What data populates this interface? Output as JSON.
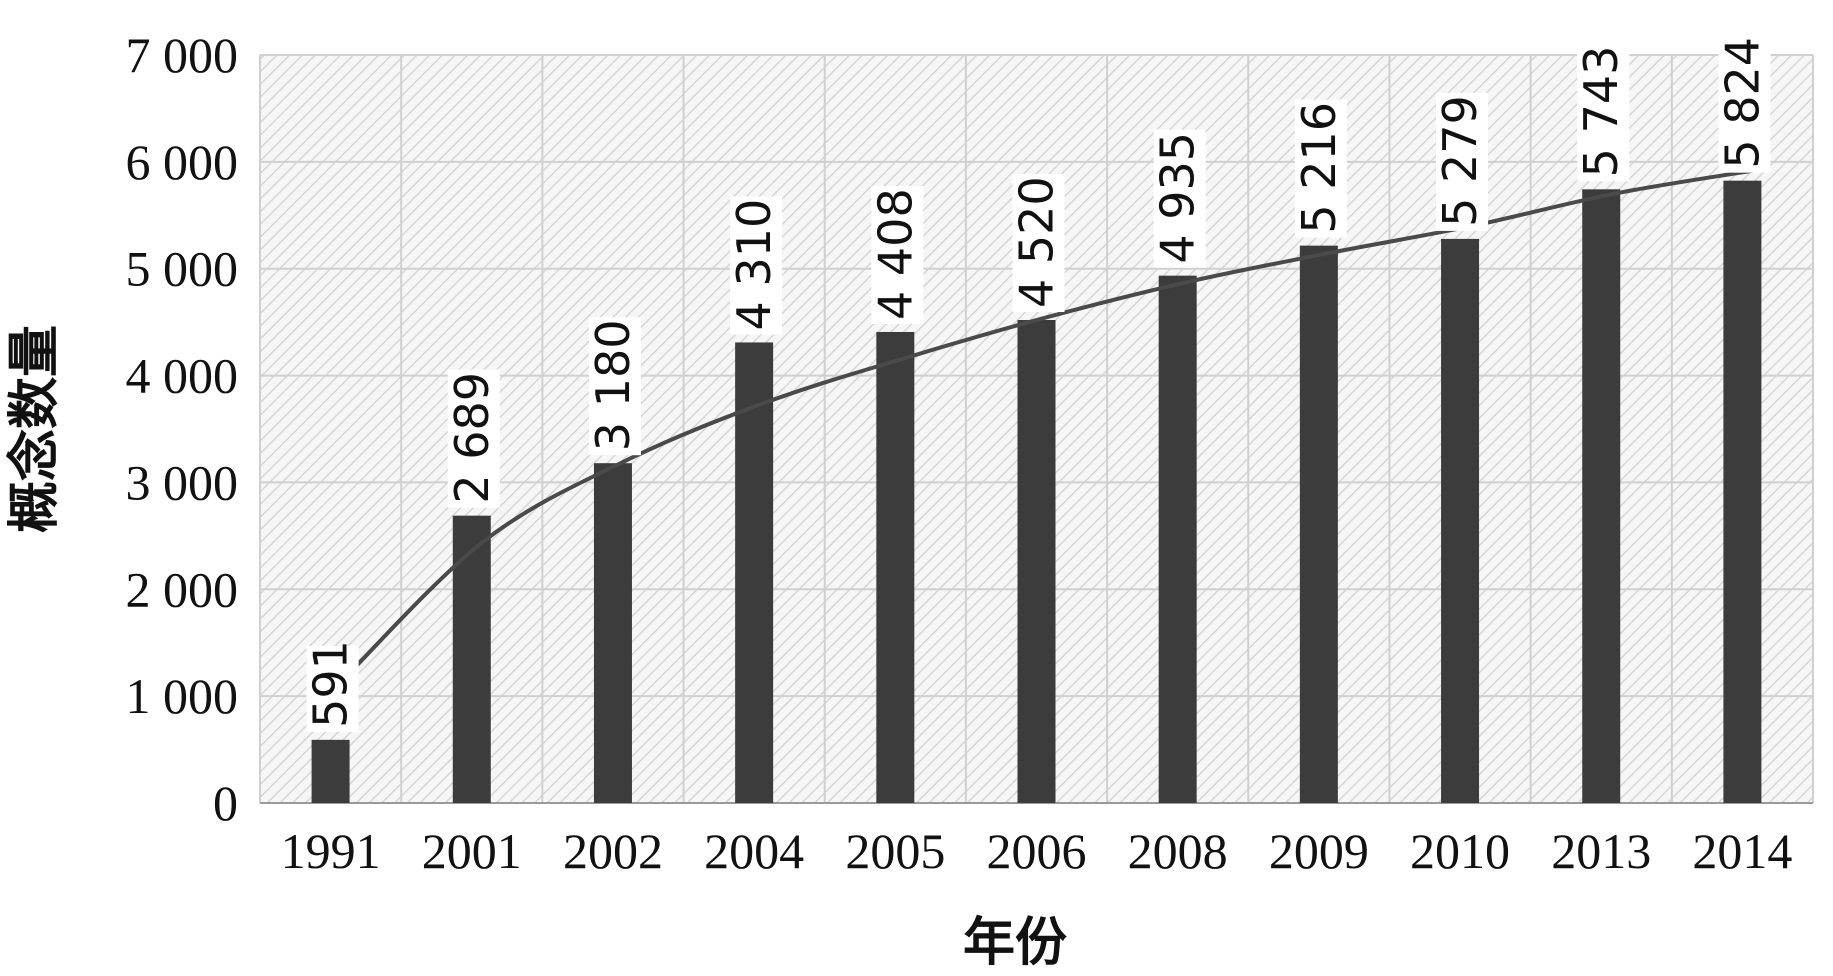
{
  "chart_data": {
    "type": "bar",
    "title": "",
    "xlabel": "年份",
    "ylabel": "概念数量",
    "categories": [
      "1991",
      "2001",
      "2002",
      "2004",
      "2005",
      "2006",
      "2008",
      "2009",
      "2010",
      "2013",
      "2014"
    ],
    "values": [
      591,
      2689,
      3180,
      4310,
      4408,
      4520,
      4935,
      5216,
      5279,
      5743,
      5824
    ],
    "value_labels": [
      "591",
      "2 689",
      "3 180",
      "4 310",
      "4 408",
      "4 520",
      "4 935",
      "5 216",
      "5 279",
      "5 743",
      "5 824"
    ],
    "ylim": [
      0,
      7000
    ],
    "yticks": [
      0,
      1000,
      2000,
      3000,
      4000,
      5000,
      6000,
      7000
    ],
    "ytick_labels": [
      "0",
      "1 000",
      "2 000",
      "3 000",
      "4 000",
      "5 000",
      "6 000",
      "7 000"
    ],
    "grid": true,
    "trendline": {
      "type": "logarithmic",
      "x": [
        1,
        2,
        3,
        4,
        5,
        6,
        7,
        8,
        9,
        10,
        11
      ],
      "values": [
        1150,
        2450,
        3200,
        3750,
        4170,
        4550,
        4880,
        5150,
        5400,
        5700,
        5920
      ]
    },
    "colors": {
      "bar": "#3c3c3c",
      "trendline": "#4a4a4a",
      "grid": "#d0d0d0",
      "hatch": "#dcdcdc"
    }
  }
}
